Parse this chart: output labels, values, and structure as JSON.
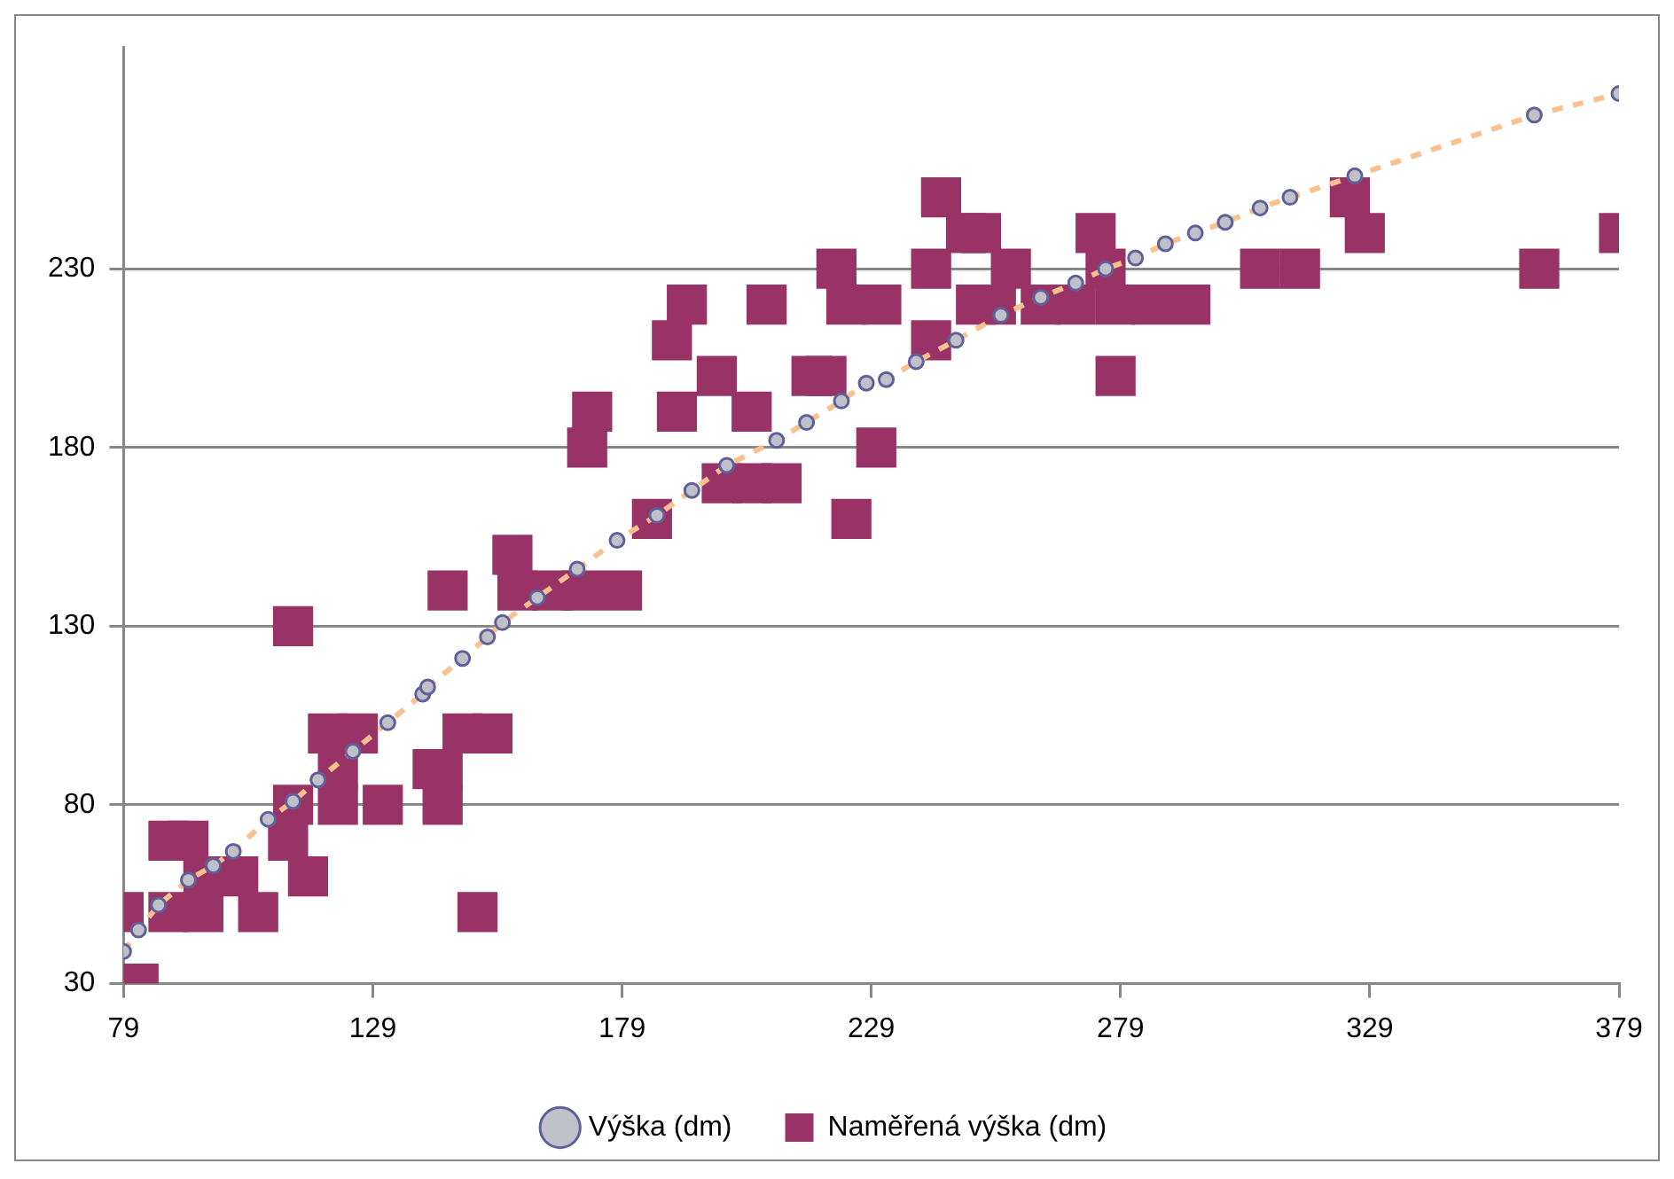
{
  "chart_data": {
    "type": "scatter",
    "xlim": [
      79,
      379
    ],
    "xticks": [
      79,
      129,
      179,
      229,
      279,
      329,
      379
    ],
    "ylim": [
      30,
      292
    ],
    "yticks": [
      30,
      80,
      130,
      180,
      230
    ],
    "grid": "y",
    "legend": "bottom",
    "series": [
      {
        "name": "Výška (dm)",
        "type": "line",
        "color": "#fac090",
        "line_style": "dashed",
        "marker": "circle",
        "x": [
          79,
          82,
          86,
          92,
          97,
          101,
          108,
          113,
          118,
          125,
          132,
          139,
          140,
          147,
          152,
          155,
          162,
          170,
          178,
          186,
          193,
          200,
          210,
          216,
          223,
          228,
          232,
          238,
          246,
          255,
          263,
          270,
          276,
          282,
          288,
          294,
          300,
          307,
          313,
          326,
          362,
          379
        ],
        "values": [
          39,
          45,
          52,
          59,
          63,
          67,
          76,
          81,
          87,
          95,
          103,
          111,
          113,
          121,
          127,
          131,
          138,
          146,
          154,
          161,
          168,
          175,
          182,
          187,
          193,
          198,
          199,
          204,
          210,
          217,
          222,
          226,
          230,
          233,
          237,
          240,
          243,
          247,
          250,
          256,
          273,
          279
        ]
      },
      {
        "name": "Naměřená výška (dm)",
        "color": "#993366",
        "marker": "square",
        "x": [
          79,
          82,
          88,
          92,
          88,
          95,
          95,
          102,
          106,
          113,
          113,
          112,
          116,
          120,
          126,
          122,
          122,
          131,
          141,
          143,
          144,
          143,
          147,
          153,
          150,
          157,
          158,
          165,
          171,
          179,
          172,
          173,
          185,
          189,
          192,
          190,
          198,
          205,
          208,
          199,
          205,
          211,
          217,
          220,
          222,
          225,
          230,
          224,
          231,
          241,
          241,
          243,
          248,
          251,
          257,
          250,
          254,
          263,
          270,
          278,
          285,
          293,
          274,
          276,
          278,
          307,
          315,
          325,
          328,
          363,
          379
        ],
        "values": [
          50,
          30,
          70,
          70,
          50,
          50,
          60,
          60,
          50,
          130,
          80,
          70,
          60,
          100,
          100,
          90,
          80,
          80,
          90,
          80,
          140,
          90,
          100,
          100,
          50,
          150,
          140,
          140,
          140,
          140,
          180,
          190,
          160,
          210,
          220,
          190,
          200,
          190,
          220,
          170,
          170,
          170,
          200,
          200,
          230,
          160,
          180,
          220,
          220,
          210,
          230,
          250,
          240,
          240,
          230,
          220,
          220,
          220,
          220,
          220,
          220,
          220,
          240,
          230,
          200,
          230,
          230,
          250,
          240,
          230,
          240
        ]
      }
    ]
  }
}
